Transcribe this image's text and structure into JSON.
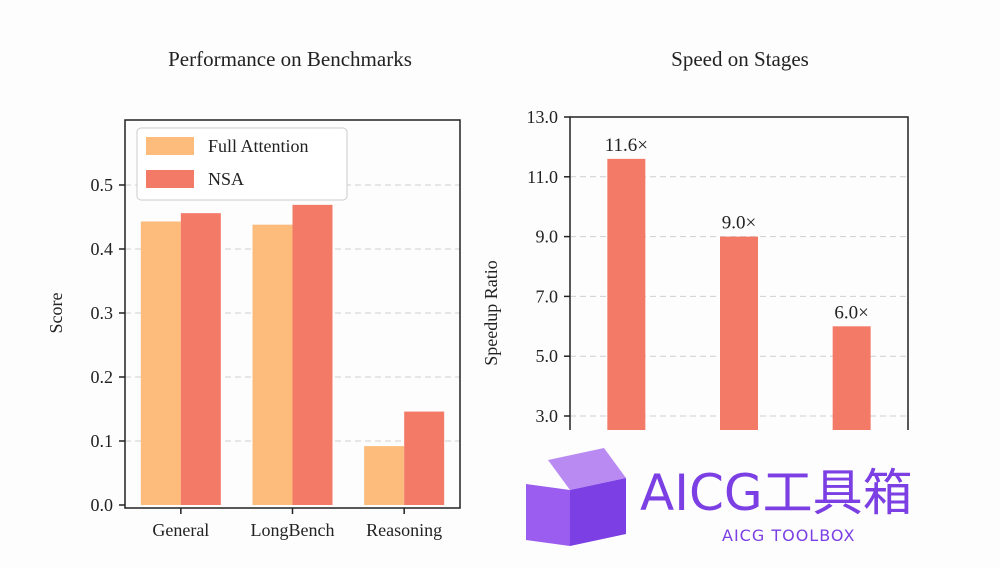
{
  "chart_data": [
    {
      "type": "bar",
      "title": "Performance on Benchmarks",
      "ylabel": "Score",
      "xlabel": "",
      "categories": [
        "General",
        "LongBench",
        "Reasoning"
      ],
      "series": [
        {
          "name": "Full Attention",
          "values": [
            0.443,
            0.438,
            0.092
          ],
          "color": "#fdbb7c"
        },
        {
          "name": "NSA",
          "values": [
            0.456,
            0.469,
            0.146
          ],
          "color": "#f47a68"
        }
      ],
      "ylim": [
        0,
        0.6
      ],
      "yticks": [
        "0.0",
        "0.1",
        "0.2",
        "0.3",
        "0.4",
        "0.5"
      ],
      "legend": "top-left",
      "grid": "horizontal dashed"
    },
    {
      "type": "bar",
      "title": "Speed on Stages",
      "ylabel": "Speedup Ratio",
      "xlabel": "",
      "categories": [
        "",
        "",
        ""
      ],
      "series": [
        {
          "values": [
            11.6,
            9.0,
            6.0
          ],
          "color": "#f47a68"
        }
      ],
      "data_labels": [
        "11.6×",
        "9.0×",
        "6.0×"
      ],
      "ylim": [
        3.0,
        13.0
      ],
      "yticks": [
        "13.0",
        "11.0",
        "9.0",
        "7.0",
        "5.0",
        "3.0"
      ],
      "grid": "horizontal dashed"
    }
  ],
  "watermark": {
    "title": "AICG工具箱",
    "subtitle": "AICG TOOLBOX",
    "color": "#7b3fe4"
  }
}
